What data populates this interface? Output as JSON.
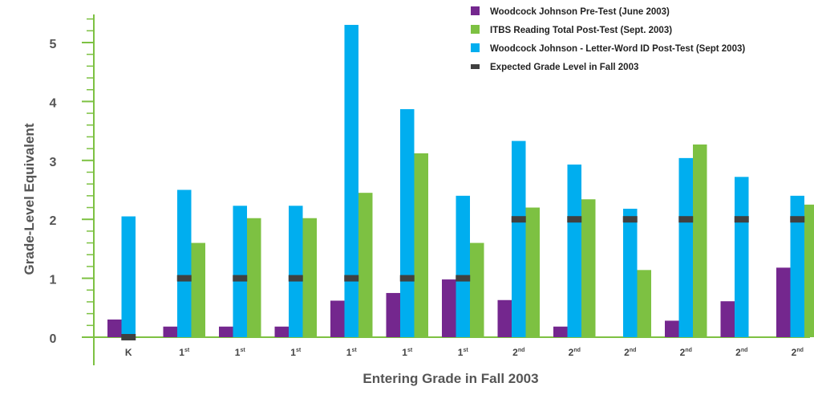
{
  "chart_data": {
    "type": "bar",
    "categories": [
      {
        "base": "K",
        "sup": ""
      },
      {
        "base": "1",
        "sup": "st"
      },
      {
        "base": "1",
        "sup": "st"
      },
      {
        "base": "1",
        "sup": "st"
      },
      {
        "base": "1",
        "sup": "st"
      },
      {
        "base": "1",
        "sup": "st"
      },
      {
        "base": "1",
        "sup": "st"
      },
      {
        "base": "2",
        "sup": "nd"
      },
      {
        "base": "2",
        "sup": "nd"
      },
      {
        "base": "2",
        "sup": "nd"
      },
      {
        "base": "2",
        "sup": "nd"
      },
      {
        "base": "2",
        "sup": "nd"
      },
      {
        "base": "2",
        "sup": "nd"
      }
    ],
    "series": [
      {
        "name": "Woodcock Johnson Pre-Test (June 2003)",
        "color": "#74278e",
        "values": [
          0.3,
          0.18,
          0.18,
          0.18,
          0.62,
          0.75,
          0.98,
          0.63,
          0.18,
          null,
          0.28,
          0.61,
          1.18
        ]
      },
      {
        "name": "Woodcock Johnson - Letter-Word ID Post-Test (Sept 2003)",
        "color": "#00aeef",
        "values": [
          2.05,
          2.5,
          2.23,
          2.23,
          5.3,
          3.87,
          2.4,
          3.33,
          2.93,
          2.18,
          3.04,
          2.72,
          2.4
        ]
      },
      {
        "name": "ITBS Reading Total Post-Test (Sept. 2003)",
        "color": "#7dc142",
        "values": [
          null,
          1.6,
          2.02,
          2.02,
          2.45,
          3.12,
          1.6,
          2.2,
          2.34,
          1.14,
          3.27,
          null,
          2.25
        ]
      }
    ],
    "expected": {
      "name": "Expected Grade Level in Fall 2003",
      "color": "#404040",
      "values": [
        0,
        1,
        1,
        1,
        1,
        1,
        1,
        2,
        2,
        2,
        2,
        2,
        2
      ]
    },
    "yticks": [
      "0",
      "1",
      "2",
      "3",
      "4",
      "5"
    ],
    "ylim": [
      0,
      5.5
    ],
    "ylabel": "Grade-Level Equivalent",
    "xlabel": "Entering Grade in Fall 2003",
    "legend_order": [
      {
        "name": "Woodcock Johnson Pre-Test (June 2003)",
        "color": "#74278e",
        "kind": "box"
      },
      {
        "name": "ITBS Reading Total Post-Test (Sept. 2003)",
        "color": "#7dc142",
        "kind": "box"
      },
      {
        "name": "Woodcock Johnson - Letter-Word ID Post-Test (Sept 2003)",
        "color": "#00aeef",
        "kind": "box"
      },
      {
        "name": "Expected Grade Level in Fall 2003",
        "color": "#404040",
        "kind": "dash"
      }
    ],
    "axis_color": "#7dc142",
    "legend_position": "top-right",
    "grid": false
  }
}
